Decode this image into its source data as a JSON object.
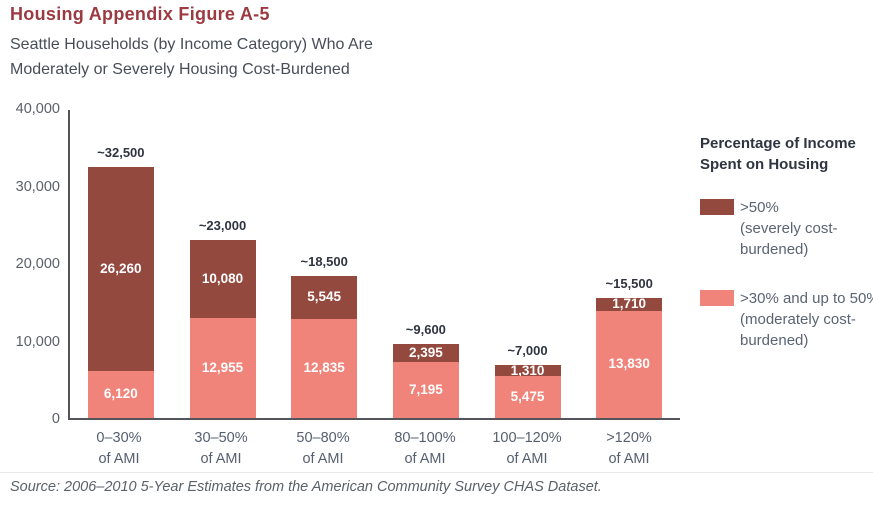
{
  "header": {
    "title": "Housing Appendix Figure A-5",
    "subtitle_line1": "Seattle Households (by Income Category) Who Are",
    "subtitle_line2": "Moderately or Severely Housing Cost-Burdened"
  },
  "chart_data": {
    "type": "bar",
    "stacked": true,
    "title": "Seattle Households (by Income Category) Who Are Moderately or Severely Housing Cost-Burdened",
    "categories": [
      "0–30%",
      "30–50%",
      "50–80%",
      "80–100%",
      "100–120%",
      ">120%"
    ],
    "category_suffix": "of AMI",
    "series": [
      {
        "name": ">50% (severely cost-burdened)",
        "color": "#94493f",
        "values": [
          26260,
          10080,
          5545,
          2395,
          1310,
          1710
        ],
        "labels": [
          "26,260",
          "10,080",
          "5,545",
          "2,395",
          "1,310",
          "1,710"
        ]
      },
      {
        "name": ">30% and up to 50% (moderately cost-burdened)",
        "color": "#f0837a",
        "values": [
          6120,
          12955,
          12835,
          7195,
          5475,
          13830
        ],
        "labels": [
          "6,120",
          "12,955",
          "12,835",
          "7,195",
          "5,475",
          "13,830"
        ]
      }
    ],
    "total_labels": [
      "~32,500",
      "~23,000",
      "~18,500",
      "~9,600",
      "~7,000",
      "~15,500"
    ],
    "ylim": [
      0,
      40000
    ],
    "yticks": [
      {
        "value": 40000,
        "label": "40,000"
      },
      {
        "value": 30000,
        "label": "30,000"
      },
      {
        "value": 20000,
        "label": "20,000"
      },
      {
        "value": 10000,
        "label": "10,000"
      },
      {
        "value": 0,
        "label": "0"
      }
    ],
    "grid": false,
    "legend_position": "right"
  },
  "legend": {
    "title_line1": "Percentage of Income",
    "title_line2": "Spent on Housing",
    "items": [
      {
        "swatch_color": "#94493f",
        "lines": [
          ">50%",
          "(severely cost-",
          "burdened)"
        ]
      },
      {
        "swatch_color": "#f0837a",
        "lines": [
          ">30% and up to 50%",
          "(moderately cost-",
          "burdened)"
        ]
      }
    ]
  },
  "source": "Source: 2006–2010 5-Year Estimates from the American Community Survey CHAS Dataset.",
  "colors": {
    "severe": "#94493f",
    "moderate": "#f0837a",
    "title": "#9d3a41",
    "axis": "#55565a"
  }
}
